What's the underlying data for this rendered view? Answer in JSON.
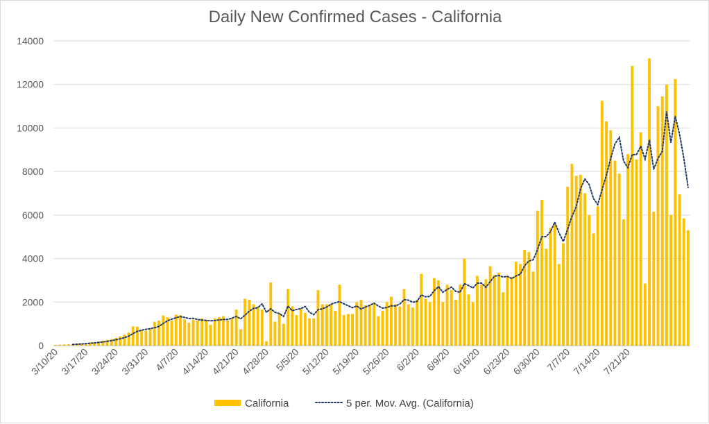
{
  "chart_data": {
    "type": "bar",
    "title": "Daily New Confirmed Cases - California",
    "xlabel": "",
    "ylabel": "",
    "ylim": [
      0,
      14000
    ],
    "y_ticks": [
      "0",
      "2000",
      "4000",
      "6000",
      "8000",
      "10000",
      "12000",
      "14000"
    ],
    "grid": "horizontal",
    "legend_position": "bottom",
    "x_tick_labels": [
      "3/10/20",
      "3/17/20",
      "3/24/20",
      "3/31/20",
      "4/7/20",
      "4/14/20",
      "4/21/20",
      "4/28/20",
      "5/5/20",
      "5/12/20",
      "5/19/20",
      "5/26/20",
      "6/2/20",
      "6/9/20",
      "6/16/20",
      "6/23/20",
      "6/30/20",
      "7/7/20",
      "7/14/20",
      "7/21/20"
    ],
    "x_start": "3/10/20",
    "x_end": "7/27/20",
    "series": [
      {
        "name": "California",
        "type": "bar",
        "color": "#FFC000",
        "values": [
          30,
          40,
          50,
          60,
          70,
          90,
          100,
          120,
          140,
          160,
          190,
          220,
          260,
          300,
          350,
          420,
          500,
          600,
          880,
          870,
          700,
          680,
          760,
          1100,
          1150,
          1380,
          1300,
          1150,
          1420,
          1400,
          1200,
          1050,
          1200,
          1150,
          1250,
          1150,
          950,
          1250,
          1300,
          1350,
          1150,
          1250,
          1650,
          750,
          2150,
          2100,
          1900,
          1800,
          1650,
          200,
          2900,
          1100,
          1500,
          1000,
          2600,
          1800,
          1400,
          1700,
          1500,
          1250,
          1250,
          2550,
          1900,
          1900,
          1900,
          1600,
          2800,
          1400,
          1450,
          1450,
          2000,
          2100,
          1850,
          1850,
          1950,
          1350,
          1600,
          2000,
          2250,
          1900,
          1800,
          2600,
          1900,
          1750,
          2100,
          3300,
          2150,
          2000,
          3100,
          3000,
          2000,
          2800,
          2550,
          2100,
          2800,
          4000,
          2350,
          2000,
          3200,
          2800,
          3050,
          3650,
          3250,
          3350,
          2450,
          3200,
          3150,
          3850,
          3750,
          4400,
          4300,
          3400,
          6200,
          6700,
          4450,
          5400,
          5600,
          3750,
          4700,
          7300,
          8350,
          7800,
          7850,
          7000,
          6000,
          5150,
          6400,
          11250,
          10300,
          9900,
          8500,
          7900,
          5800,
          8800,
          12850,
          8550,
          9800,
          2850,
          13200,
          6150,
          11000,
          11450,
          12000,
          6000,
          12250,
          6950,
          5850,
          5300
        ]
      },
      {
        "name": "5 per. Mov. Avg. (California)",
        "type": "line",
        "style": "dotted",
        "color": "#1f3864"
      }
    ]
  },
  "legend": {
    "bar_label": "California",
    "line_label": "5 per. Mov. Avg. (California)"
  }
}
